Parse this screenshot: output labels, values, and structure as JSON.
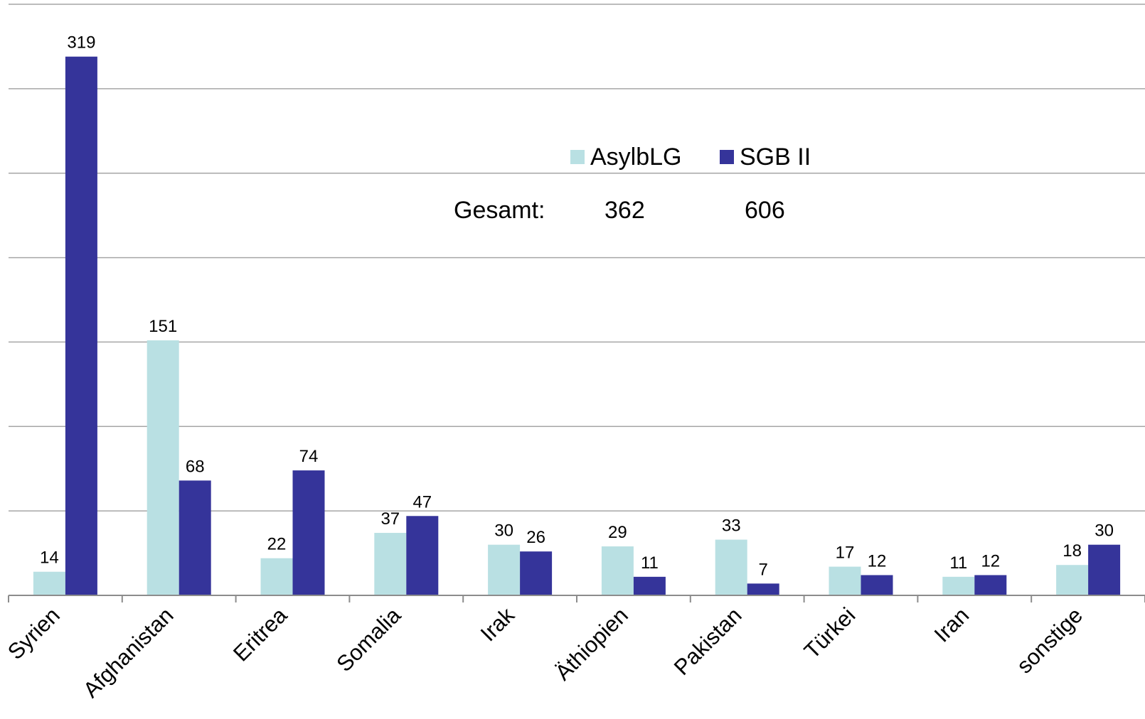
{
  "chart_data": {
    "type": "bar",
    "categories": [
      "Syrien",
      "Afghanistan",
      "Eritrea",
      "Somalia",
      "Irak",
      "Äthiopien",
      "Pakistan",
      "Türkei",
      "Iran",
      "sonstige"
    ],
    "series": [
      {
        "name": "AsylbLG",
        "color": "#b9e0e3",
        "values": [
          14,
          151,
          22,
          37,
          30,
          29,
          33,
          17,
          11,
          18
        ]
      },
      {
        "name": "SGB II",
        "color": "#35349a",
        "values": [
          319,
          68,
          74,
          47,
          26,
          11,
          7,
          12,
          12,
          30
        ]
      }
    ],
    "totals": {
      "label": "Gesamt:",
      "values": [
        "362",
        "606"
      ]
    },
    "ylim": [
      0,
      350
    ],
    "grid": true,
    "legend_position": "top-center",
    "title": "",
    "xlabel": "",
    "ylabel": ""
  }
}
